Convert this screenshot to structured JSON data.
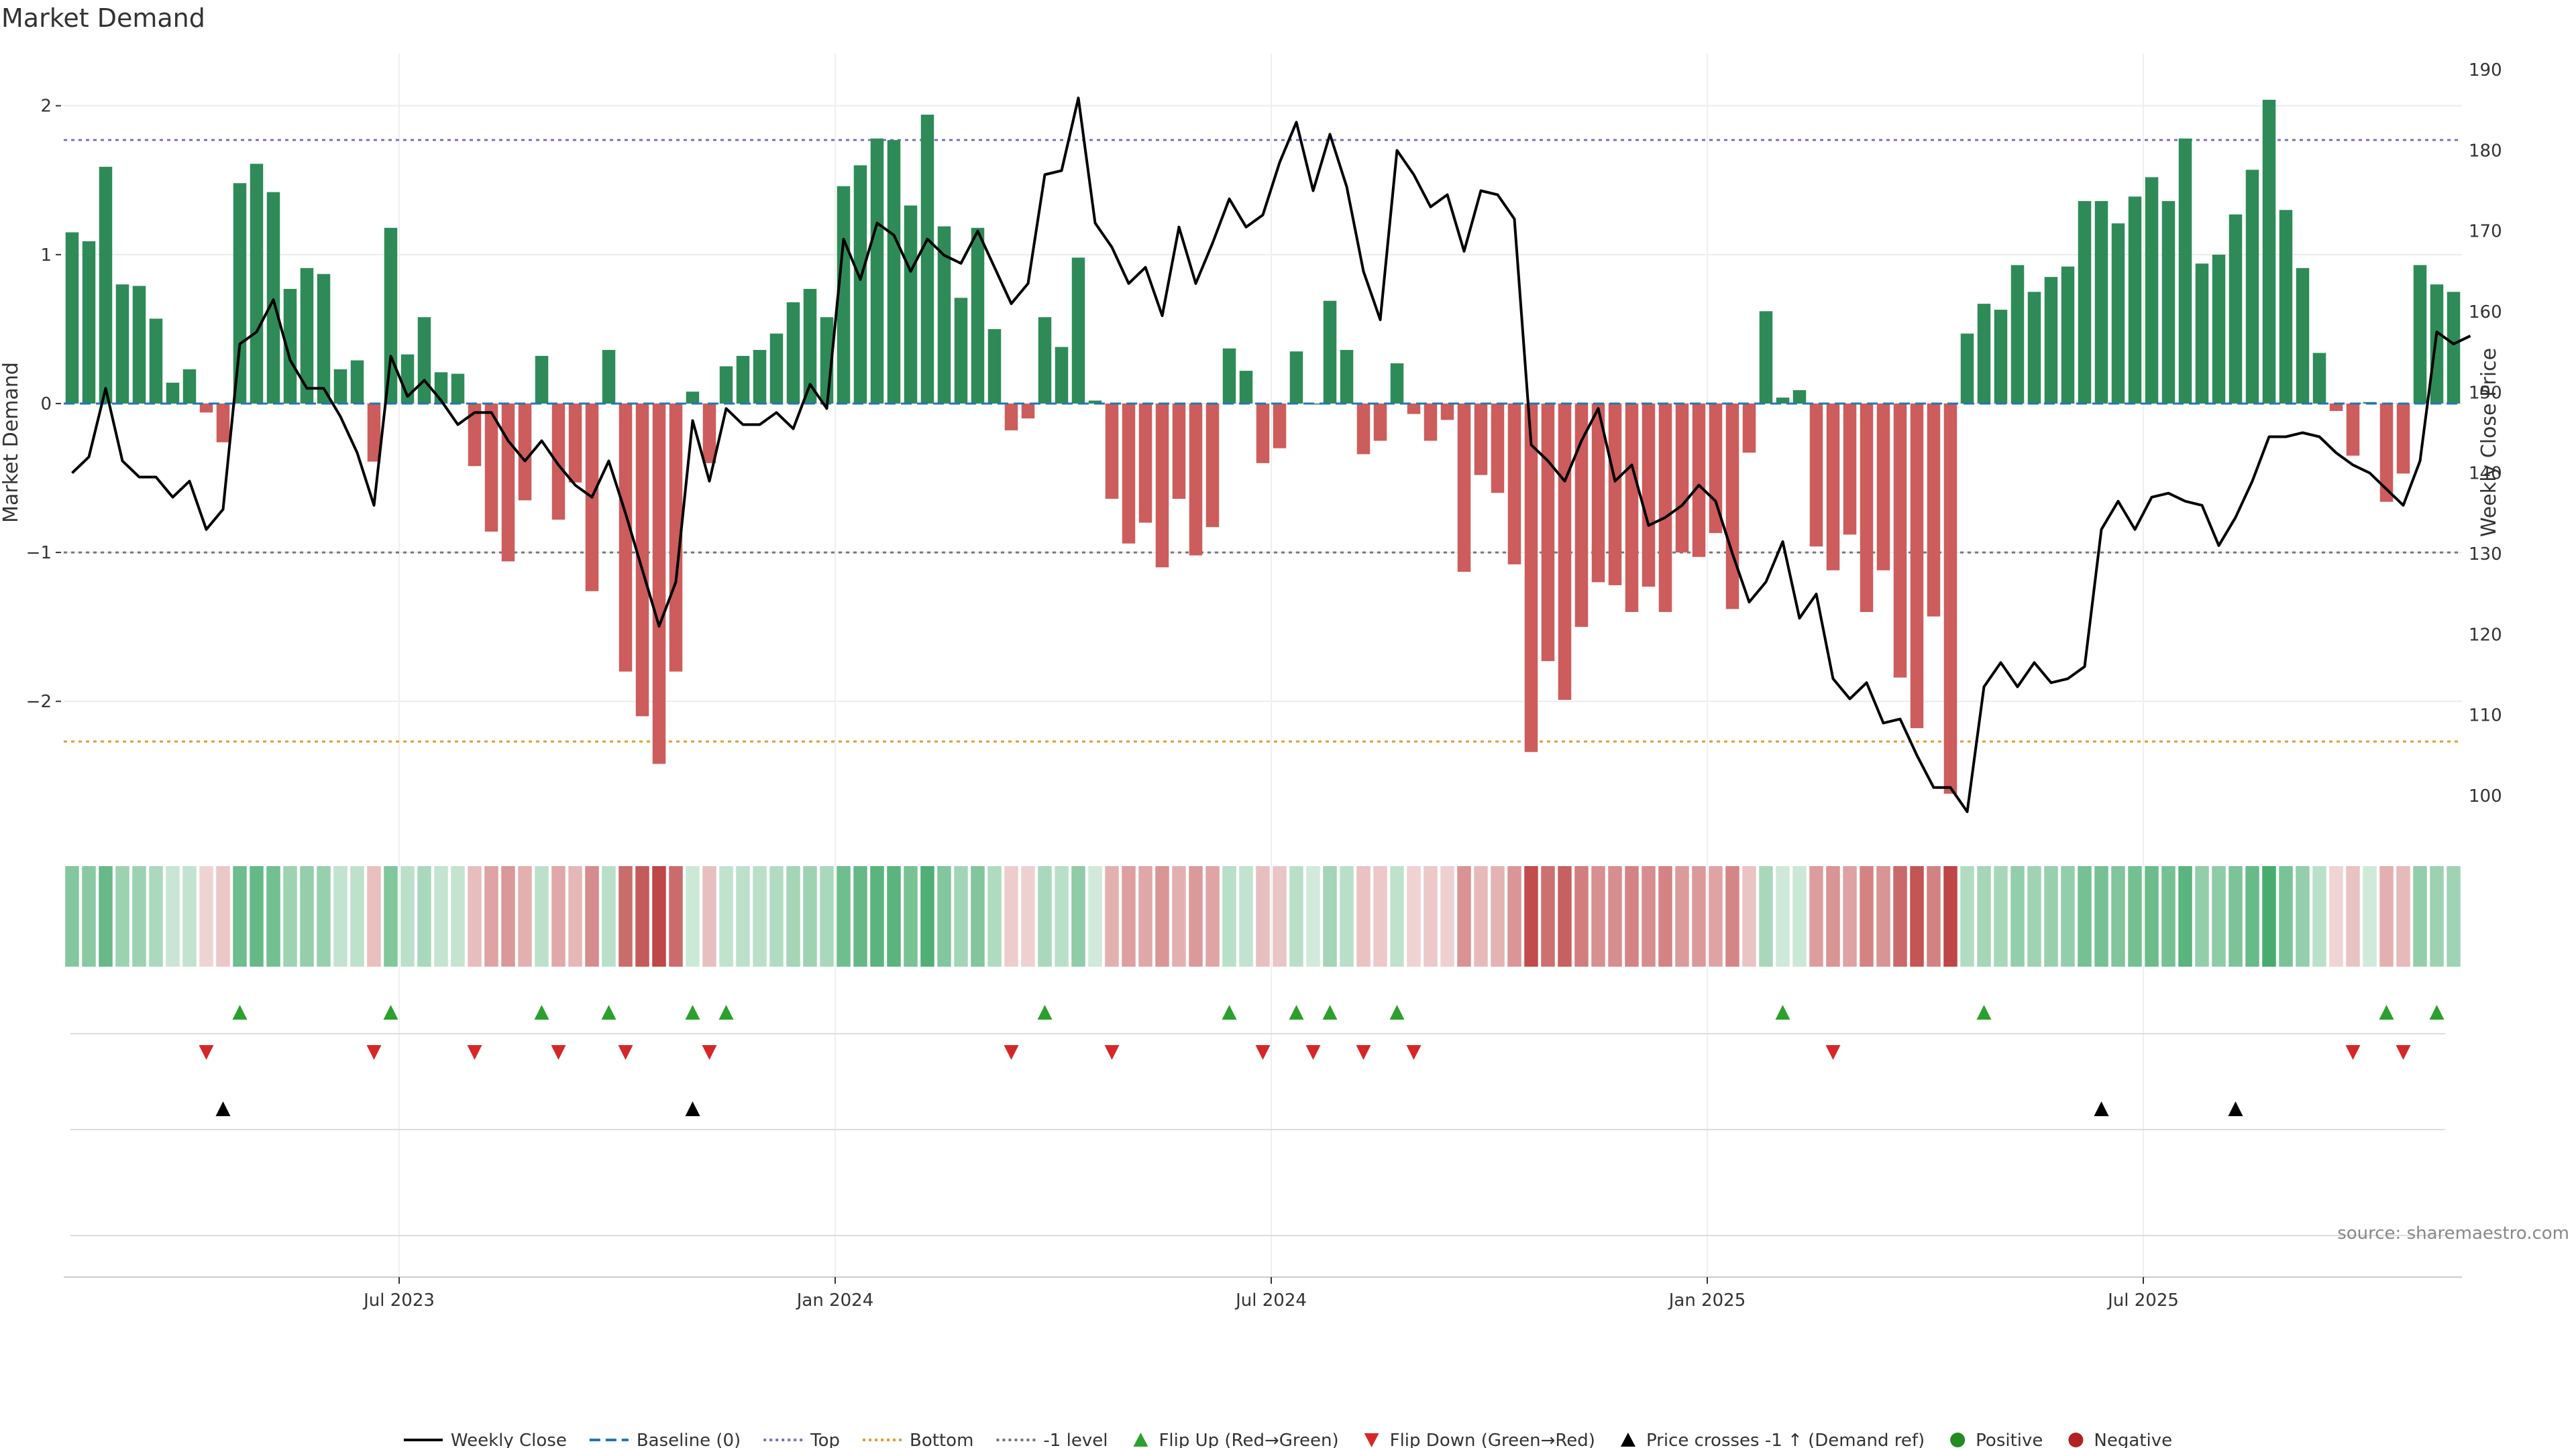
{
  "chart_data": {
    "type": "bar",
    "title": "Market Demand",
    "ylabel": "Market Demand",
    "y2label": "Weekly Close Price",
    "ylim": [
      -2.85,
      2.35
    ],
    "y2lim": [
      96,
      192
    ],
    "yticks": [
      2,
      1,
      0,
      -1,
      -2
    ],
    "ytick_labels": [
      "2",
      "1",
      "0",
      "−1",
      "−2"
    ],
    "y2ticks": [
      190,
      180,
      170,
      160,
      150,
      140,
      130,
      120,
      110,
      100
    ],
    "xtick_labels": [
      "Jul 2023",
      "Jan 2024",
      "Jul 2024",
      "Jan 2025",
      "Jul 2025"
    ],
    "xtick_weeks": [
      20,
      46,
      72,
      98,
      124
    ],
    "reference_lines": [
      {
        "name": "Top",
        "value": 1.77,
        "color": "#7b6fc4"
      },
      {
        "name": "Bottom",
        "value": -2.27,
        "color": "#e39b2e"
      },
      {
        "name": "-1 level",
        "value": -1,
        "color": "#777777"
      }
    ],
    "colors": {
      "positive": "#2e8b57",
      "negative": "#cd5c5c",
      "price": "#000000",
      "flip_up": "#2ca02c",
      "flip_down": "#d62728",
      "cross": "#000000",
      "legend_positive": "#228b22",
      "legend_negative": "#b22222",
      "baseline": "#1f77b4"
    },
    "demand": [
      1.15,
      1.09,
      1.59,
      0.8,
      0.79,
      0.57,
      0.14,
      0.23,
      -0.06,
      -0.26,
      1.48,
      1.61,
      1.42,
      0.77,
      0.91,
      0.87,
      0.23,
      0.29,
      -0.39,
      1.18,
      0.33,
      0.58,
      0.21,
      0.2,
      -0.42,
      -0.86,
      -1.06,
      -0.65,
      0.32,
      -0.78,
      -0.53,
      -1.26,
      0.36,
      -1.8,
      -2.1,
      -2.42,
      -1.8,
      0.08,
      -0.4,
      0.25,
      0.32,
      0.36,
      0.47,
      0.68,
      0.77,
      0.58,
      1.46,
      1.6,
      1.78,
      1.77,
      1.33,
      1.94,
      1.19,
      0.71,
      1.18,
      0.5,
      -0.18,
      -0.1,
      0.58,
      0.38,
      0.98,
      0.02,
      -0.64,
      -0.94,
      -0.8,
      -1.1,
      -0.64,
      -1.02,
      -0.83,
      0.37,
      0.22,
      -0.4,
      -0.3,
      0.35,
      0.0,
      0.69,
      0.36,
      -0.34,
      -0.25,
      0.27,
      -0.07,
      -0.25,
      -0.11,
      -1.13,
      -0.48,
      -0.6,
      -1.08,
      -2.34,
      -1.73,
      -1.99,
      -1.5,
      -1.2,
      -1.22,
      -1.4,
      -1.23,
      -1.4,
      -1.0,
      -1.03,
      -0.87,
      -1.38,
      -0.33,
      0.62,
      0.04,
      0.09,
      -0.96,
      -1.12,
      -0.88,
      -1.4,
      -1.12,
      -1.84,
      -2.18,
      -1.43,
      -2.62,
      0.47,
      0.67,
      0.63,
      0.93,
      0.75,
      0.85,
      0.92,
      1.36,
      1.36,
      1.21,
      1.39,
      1.52,
      1.36,
      1.78,
      0.94,
      1.0,
      1.27,
      1.57,
      2.04,
      1.3,
      0.91,
      0.34,
      -0.05,
      -0.35,
      0.01,
      -0.66,
      -0.47,
      0.93,
      0.8,
      0.75
    ],
    "price": [
      140,
      142,
      150.5,
      141.5,
      139.5,
      139.5,
      137,
      139,
      133,
      135.5,
      156,
      157.5,
      161.5,
      154,
      150.5,
      150.5,
      147,
      142.5,
      136,
      154.5,
      149.5,
      151.5,
      149,
      146,
      147.5,
      147.5,
      144,
      141.5,
      144,
      141,
      138.5,
      137,
      141.5,
      135,
      128,
      121,
      126.5,
      146.5,
      139,
      148,
      146,
      146,
      147.5,
      145.5,
      151,
      148,
      169,
      164,
      171,
      169.5,
      165,
      169,
      167,
      166,
      170,
      165.5,
      161,
      163.5,
      177,
      177.5,
      186.5,
      171,
      168,
      163.5,
      165.5,
      159.5,
      170.5,
      163.5,
      168.5,
      174,
      170.5,
      172,
      178.5,
      183.5,
      175,
      182,
      175.5,
      165,
      159,
      180,
      177,
      173,
      174.5,
      167.5,
      175,
      174.5,
      171.5,
      143.5,
      141.5,
      139,
      144,
      148,
      139,
      141,
      133.5,
      134.5,
      136,
      138.5,
      136.5,
      130,
      124,
      126.5,
      131.5,
      122,
      125,
      114.5,
      112,
      114,
      109,
      109.5,
      105,
      101,
      101,
      98,
      113.5,
      116.5,
      113.5,
      116.5,
      114,
      114.5,
      116,
      133,
      136.5,
      133,
      137,
      137.5,
      136.5,
      136,
      131,
      134.5,
      139,
      144.5,
      144.5,
      145,
      144.5,
      142.5,
      141,
      140,
      138,
      136,
      141.5,
      157.5,
      156,
      157
    ],
    "flip_up": [
      10,
      19,
      28,
      32,
      37,
      39,
      58,
      69,
      73,
      75,
      79,
      102,
      114,
      138,
      141
    ],
    "flip_down": [
      8,
      18,
      24,
      29,
      33,
      38,
      56,
      62,
      71,
      74,
      77,
      80,
      105,
      136,
      139
    ],
    "price_cross_up": [
      9,
      37,
      121,
      129
    ],
    "source": "source: sharemaestro.com",
    "legend": [
      {
        "type": "line",
        "label": "Weekly Close",
        "color": "#000000",
        "dash": ""
      },
      {
        "type": "line",
        "label": "Baseline (0)",
        "color": "#1f77b4",
        "dash": "16,8"
      },
      {
        "type": "line",
        "label": "Top",
        "color": "#7b6fc4",
        "dash": "4,5"
      },
      {
        "type": "line",
        "label": "Bottom",
        "color": "#e39b2e",
        "dash": "4,5"
      },
      {
        "type": "line",
        "label": "-1 level",
        "color": "#777777",
        "dash": "4,5"
      },
      {
        "type": "tri-up",
        "label": "Flip Up (Red→Green)",
        "color": "#2ca02c"
      },
      {
        "type": "tri-down",
        "label": "Flip Down (Green→Red)",
        "color": "#d62728"
      },
      {
        "type": "tri-up",
        "label": "Price crosses -1 ↑ (Demand ref)",
        "color": "#000000"
      },
      {
        "type": "dot",
        "label": "Positive",
        "color": "#228b22"
      },
      {
        "type": "dot",
        "label": "Negative",
        "color": "#b22222"
      }
    ]
  }
}
